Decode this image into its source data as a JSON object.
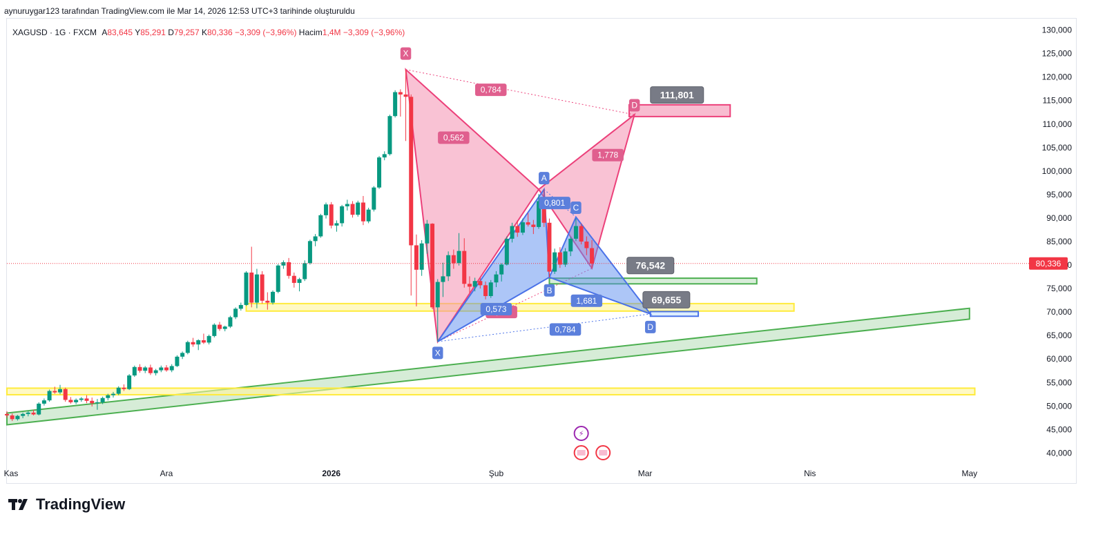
{
  "header": {
    "attribution": "aynuruygar123 tarafından TradingView.com ile Mar 14, 2026 12:53 UTC+3 tarihinde oluşturuldu"
  },
  "legend": {
    "symbol": "XAGUSD · 1G · FXCM",
    "open_label": "A",
    "open_value": "83,645",
    "high_label": "Y",
    "high_value": "85,291",
    "low_label": "D",
    "low_value": "79,257",
    "close_label": "K",
    "close_value": "80,336",
    "change": "−3,309 (−3,96%)",
    "volume_label": "Hacim",
    "volume_value": "1,4M",
    "volume_change": "−3,309 (−3,96%)"
  },
  "brand": {
    "name": "TradingView"
  },
  "colors": {
    "up": "#089981",
    "down": "#f23645",
    "pink_fill": "#f48fb1",
    "pink_line": "#ec407a",
    "blue_fill": "#5b8def",
    "blue_line": "#4a72e8",
    "yellow_zone": "#fff176",
    "green_channel": "#4caf50"
  },
  "chart_data": {
    "type": "candlestick",
    "title": "",
    "ylim": [
      38000,
      132000
    ],
    "y_ticks": [
      "130,000",
      "125,000",
      "120,000",
      "115,000",
      "110,000",
      "105,000",
      "100,000",
      "95,000",
      "90,000",
      "85,000",
      "80,000",
      "75,000",
      "70,000",
      "65,000",
      "60,000",
      "55,000",
      "50,000",
      "45,000",
      "40,000"
    ],
    "y_tick_values": [
      130000,
      125000,
      120000,
      115000,
      110000,
      105000,
      100000,
      95000,
      90000,
      85000,
      80000,
      75000,
      70000,
      65000,
      60000,
      55000,
      50000,
      45000,
      40000
    ],
    "x_ticks": [
      "Kas",
      "Ara",
      "2026",
      "Şub",
      "Mar",
      "Nis",
      "May"
    ],
    "x_tick_days": [
      -30,
      0,
      31,
      62,
      90,
      121,
      151
    ],
    "x_range_days": [
      -30,
      157
    ],
    "last_price": "80,336",
    "last_price_value": 80336,
    "candles": [
      {
        "d": -30,
        "o": 48.3,
        "h": 48.9,
        "l": 47.5,
        "c": 48.0
      },
      {
        "d": -29,
        "o": 48.0,
        "h": 48.4,
        "l": 46.8,
        "c": 47.2
      },
      {
        "d": -28,
        "o": 47.2,
        "h": 48.1,
        "l": 46.9,
        "c": 47.9
      },
      {
        "d": -27,
        "o": 47.9,
        "h": 48.6,
        "l": 47.4,
        "c": 48.3
      },
      {
        "d": -26,
        "o": 48.3,
        "h": 48.9,
        "l": 47.8,
        "c": 48.6
      },
      {
        "d": -25,
        "o": 48.6,
        "h": 49.2,
        "l": 48.0,
        "c": 48.2
      },
      {
        "d": -24,
        "o": 48.2,
        "h": 50.8,
        "l": 48.0,
        "c": 50.5
      },
      {
        "d": -23,
        "o": 50.5,
        "h": 51.6,
        "l": 50.1,
        "c": 51.2
      },
      {
        "d": -22,
        "o": 51.2,
        "h": 53.5,
        "l": 50.9,
        "c": 53.2
      },
      {
        "d": -21,
        "o": 53.2,
        "h": 54.1,
        "l": 52.6,
        "c": 52.9
      },
      {
        "d": -20,
        "o": 52.9,
        "h": 54.5,
        "l": 52.5,
        "c": 53.6
      },
      {
        "d": -19,
        "o": 53.6,
        "h": 53.9,
        "l": 50.9,
        "c": 51.3
      },
      {
        "d": -18,
        "o": 51.3,
        "h": 51.9,
        "l": 50.5,
        "c": 50.8
      },
      {
        "d": -17,
        "o": 50.8,
        "h": 51.6,
        "l": 50.4,
        "c": 51.3
      },
      {
        "d": -16,
        "o": 51.3,
        "h": 51.9,
        "l": 50.9,
        "c": 51.6
      },
      {
        "d": -15,
        "o": 51.6,
        "h": 52.3,
        "l": 50.6,
        "c": 51.1
      },
      {
        "d": -14,
        "o": 51.1,
        "h": 51.8,
        "l": 49.9,
        "c": 50.6
      },
      {
        "d": -13,
        "o": 50.6,
        "h": 51.5,
        "l": 49.2,
        "c": 50.8
      },
      {
        "d": -12,
        "o": 50.8,
        "h": 52.0,
        "l": 50.4,
        "c": 51.7
      },
      {
        "d": -11,
        "o": 51.7,
        "h": 52.6,
        "l": 51.2,
        "c": 52.3
      },
      {
        "d": -10,
        "o": 52.3,
        "h": 53.0,
        "l": 51.8,
        "c": 52.6
      },
      {
        "d": -9,
        "o": 52.6,
        "h": 54.2,
        "l": 52.3,
        "c": 53.9
      },
      {
        "d": -8,
        "o": 53.9,
        "h": 54.6,
        "l": 53.2,
        "c": 53.6
      },
      {
        "d": -7,
        "o": 53.6,
        "h": 56.8,
        "l": 53.4,
        "c": 56.5
      },
      {
        "d": -6,
        "o": 56.5,
        "h": 58.6,
        "l": 56.2,
        "c": 58.3
      },
      {
        "d": -5,
        "o": 58.3,
        "h": 58.9,
        "l": 57.1,
        "c": 57.5
      },
      {
        "d": -4,
        "o": 57.5,
        "h": 58.5,
        "l": 57.0,
        "c": 58.2
      },
      {
        "d": -3,
        "o": 58.2,
        "h": 58.8,
        "l": 56.6,
        "c": 57.0
      },
      {
        "d": -2,
        "o": 57.0,
        "h": 57.9,
        "l": 56.5,
        "c": 57.6
      },
      {
        "d": -1,
        "o": 57.6,
        "h": 58.6,
        "l": 57.2,
        "c": 58.2
      },
      {
        "d": 0,
        "o": 58.2,
        "h": 58.7,
        "l": 57.3,
        "c": 57.6
      },
      {
        "d": 1,
        "o": 57.6,
        "h": 58.9,
        "l": 57.2,
        "c": 58.5
      },
      {
        "d": 2,
        "o": 58.5,
        "h": 60.8,
        "l": 58.3,
        "c": 60.5
      },
      {
        "d": 3,
        "o": 60.5,
        "h": 61.6,
        "l": 60.0,
        "c": 61.3
      },
      {
        "d": 4,
        "o": 61.3,
        "h": 63.9,
        "l": 61.0,
        "c": 63.6
      },
      {
        "d": 5,
        "o": 63.6,
        "h": 64.5,
        "l": 62.6,
        "c": 63.1
      },
      {
        "d": 6,
        "o": 63.1,
        "h": 64.2,
        "l": 61.9,
        "c": 64.0
      },
      {
        "d": 7,
        "o": 64.0,
        "h": 65.4,
        "l": 63.2,
        "c": 63.5
      },
      {
        "d": 8,
        "o": 63.5,
        "h": 65.2,
        "l": 63.1,
        "c": 64.9
      },
      {
        "d": 9,
        "o": 64.9,
        "h": 67.6,
        "l": 64.6,
        "c": 67.3
      },
      {
        "d": 10,
        "o": 67.3,
        "h": 67.9,
        "l": 66.0,
        "c": 66.4
      },
      {
        "d": 11,
        "o": 66.4,
        "h": 67.1,
        "l": 65.9,
        "c": 66.9
      },
      {
        "d": 12,
        "o": 66.9,
        "h": 69.2,
        "l": 66.6,
        "c": 68.9
      },
      {
        "d": 13,
        "o": 68.9,
        "h": 71.0,
        "l": 68.5,
        "c": 70.7
      },
      {
        "d": 14,
        "o": 70.7,
        "h": 72.0,
        "l": 70.3,
        "c": 71.5
      },
      {
        "d": 15,
        "o": 71.5,
        "h": 78.7,
        "l": 71.3,
        "c": 78.4
      },
      {
        "d": 16,
        "o": 78.4,
        "h": 83.9,
        "l": 71.0,
        "c": 72.0
      },
      {
        "d": 17,
        "o": 72.0,
        "h": 79.2,
        "l": 70.8,
        "c": 78.0
      },
      {
        "d": 18,
        "o": 78.0,
        "h": 78.7,
        "l": 71.8,
        "c": 72.4
      },
      {
        "d": 19,
        "o": 72.4,
        "h": 74.2,
        "l": 70.5,
        "c": 72.0
      },
      {
        "d": 20,
        "o": 72.0,
        "h": 74.6,
        "l": 71.6,
        "c": 74.3
      },
      {
        "d": 21,
        "o": 74.3,
        "h": 80.2,
        "l": 74.0,
        "c": 79.9
      },
      {
        "d": 22,
        "o": 79.9,
        "h": 81.0,
        "l": 79.2,
        "c": 80.6
      },
      {
        "d": 23,
        "o": 80.6,
        "h": 81.5,
        "l": 77.1,
        "c": 77.7
      },
      {
        "d": 24,
        "o": 77.7,
        "h": 78.4,
        "l": 75.2,
        "c": 76.2
      },
      {
        "d": 25,
        "o": 76.2,
        "h": 77.3,
        "l": 74.4,
        "c": 77.0
      },
      {
        "d": 26,
        "o": 77.0,
        "h": 81.0,
        "l": 76.6,
        "c": 80.4
      },
      {
        "d": 27,
        "o": 80.4,
        "h": 85.4,
        "l": 80.1,
        "c": 85.1
      },
      {
        "d": 28,
        "o": 85.1,
        "h": 86.6,
        "l": 84.0,
        "c": 86.1
      },
      {
        "d": 29,
        "o": 86.1,
        "h": 90.9,
        "l": 85.8,
        "c": 90.6
      },
      {
        "d": 30,
        "o": 90.6,
        "h": 93.3,
        "l": 89.9,
        "c": 92.9
      },
      {
        "d": 31,
        "o": 92.9,
        "h": 93.4,
        "l": 87.8,
        "c": 88.4
      },
      {
        "d": 32,
        "o": 88.4,
        "h": 89.5,
        "l": 87.1,
        "c": 88.9
      },
      {
        "d": 33,
        "o": 88.9,
        "h": 92.8,
        "l": 88.2,
        "c": 92.5
      },
      {
        "d": 34,
        "o": 92.5,
        "h": 93.9,
        "l": 91.6,
        "c": 93.0
      },
      {
        "d": 35,
        "o": 93.0,
        "h": 93.6,
        "l": 90.1,
        "c": 90.7
      },
      {
        "d": 36,
        "o": 90.7,
        "h": 93.7,
        "l": 90.3,
        "c": 93.3
      },
      {
        "d": 37,
        "o": 93.3,
        "h": 94.7,
        "l": 88.5,
        "c": 89.3
      },
      {
        "d": 38,
        "o": 89.3,
        "h": 92.2,
        "l": 88.9,
        "c": 91.8
      },
      {
        "d": 39,
        "o": 91.8,
        "h": 96.8,
        "l": 91.4,
        "c": 96.5
      },
      {
        "d": 40,
        "o": 96.5,
        "h": 103.2,
        "l": 96.2,
        "c": 102.9
      },
      {
        "d": 41,
        "o": 102.9,
        "h": 104.2,
        "l": 102.3,
        "c": 103.6
      },
      {
        "d": 42,
        "o": 103.6,
        "h": 112.0,
        "l": 103.3,
        "c": 111.7
      },
      {
        "d": 43,
        "o": 111.7,
        "h": 117.2,
        "l": 111.4,
        "c": 116.8
      },
      {
        "d": 44,
        "o": 116.8,
        "h": 117.4,
        "l": 111.6,
        "c": 116.3
      },
      {
        "d": 45,
        "o": 116.3,
        "h": 121.6,
        "l": 106.4,
        "c": 115.8
      },
      {
        "d": 46,
        "o": 115.8,
        "h": 116.3,
        "l": 73.5,
        "c": 84.2
      },
      {
        "d": 47,
        "o": 84.2,
        "h": 86.5,
        "l": 71.2,
        "c": 79.0
      },
      {
        "d": 48,
        "o": 79.0,
        "h": 85.3,
        "l": 77.7,
        "c": 84.6
      },
      {
        "d": 49,
        "o": 84.6,
        "h": 89.6,
        "l": 82.4,
        "c": 88.8
      },
      {
        "d": 50,
        "o": 88.8,
        "h": 88.9,
        "l": 70.6,
        "c": 71.0
      },
      {
        "d": 51,
        "o": 71.0,
        "h": 77.0,
        "l": 63.7,
        "c": 76.4
      },
      {
        "d": 52,
        "o": 76.4,
        "h": 80.5,
        "l": 73.2,
        "c": 77.6
      },
      {
        "d": 53,
        "o": 77.6,
        "h": 82.9,
        "l": 76.6,
        "c": 82.1
      },
      {
        "d": 54,
        "o": 82.1,
        "h": 83.3,
        "l": 79.2,
        "c": 80.4
      },
      {
        "d": 55,
        "o": 80.4,
        "h": 86.8,
        "l": 79.9,
        "c": 83.0
      },
      {
        "d": 56,
        "o": 83.0,
        "h": 85.7,
        "l": 75.2,
        "c": 76.0
      },
      {
        "d": 57,
        "o": 76.0,
        "h": 77.6,
        "l": 74.1,
        "c": 75.4
      },
      {
        "d": 58,
        "o": 75.4,
        "h": 77.3,
        "l": 74.4,
        "c": 76.6
      },
      {
        "d": 59,
        "o": 76.6,
        "h": 77.3,
        "l": 75.0,
        "c": 75.7
      },
      {
        "d": 60,
        "o": 75.7,
        "h": 76.5,
        "l": 72.7,
        "c": 73.4
      },
      {
        "d": 61,
        "o": 73.4,
        "h": 76.8,
        "l": 73.0,
        "c": 76.3
      },
      {
        "d": 62,
        "o": 76.3,
        "h": 78.7,
        "l": 75.3,
        "c": 78.0
      },
      {
        "d": 63,
        "o": 78.0,
        "h": 80.4,
        "l": 76.5,
        "c": 80.1
      },
      {
        "d": 64,
        "o": 80.1,
        "h": 86.1,
        "l": 79.9,
        "c": 85.6
      },
      {
        "d": 65,
        "o": 85.6,
        "h": 89.0,
        "l": 84.8,
        "c": 88.3
      },
      {
        "d": 66,
        "o": 88.3,
        "h": 89.5,
        "l": 86.0,
        "c": 86.9
      },
      {
        "d": 67,
        "o": 86.9,
        "h": 89.9,
        "l": 86.4,
        "c": 89.1
      },
      {
        "d": 68,
        "o": 89.1,
        "h": 91.1,
        "l": 88.2,
        "c": 88.6
      },
      {
        "d": 69,
        "o": 88.6,
        "h": 89.6,
        "l": 86.6,
        "c": 88.1
      },
      {
        "d": 70,
        "o": 88.1,
        "h": 95.1,
        "l": 87.7,
        "c": 93.6
      },
      {
        "d": 71,
        "o": 93.6,
        "h": 96.1,
        "l": 88.1,
        "c": 89.0
      },
      {
        "d": 72,
        "o": 89.0,
        "h": 89.9,
        "l": 77.4,
        "c": 78.6
      },
      {
        "d": 73,
        "o": 78.6,
        "h": 83.5,
        "l": 78.1,
        "c": 82.7
      },
      {
        "d": 74,
        "o": 82.7,
        "h": 83.8,
        "l": 79.4,
        "c": 80.1
      },
      {
        "d": 75,
        "o": 80.1,
        "h": 83.6,
        "l": 79.6,
        "c": 82.9
      },
      {
        "d": 76,
        "o": 82.9,
        "h": 86.0,
        "l": 81.9,
        "c": 85.6
      },
      {
        "d": 77,
        "o": 85.6,
        "h": 89.9,
        "l": 85.1,
        "c": 88.3
      },
      {
        "d": 78,
        "o": 88.3,
        "h": 88.8,
        "l": 84.4,
        "c": 85.0
      },
      {
        "d": 79,
        "o": 85.0,
        "h": 86.1,
        "l": 82.1,
        "c": 83.6
      },
      {
        "d": 80,
        "o": 83.6,
        "h": 85.3,
        "l": 79.3,
        "c": 80.3
      }
    ],
    "patterns": [
      {
        "name": "pink",
        "points": {
          "X": {
            "d": 45,
            "v": 121.6
          },
          "A": {
            "d": 51,
            "v": 63.7
          },
          "B": {
            "d": 70,
            "v": 96.1
          },
          "C": {
            "d": 80,
            "v": 79.3
          },
          "D": {
            "d": 88,
            "v": 112.0
          }
        },
        "labels": [
          {
            "text": "X",
            "d": 45,
            "v": 125.0
          },
          {
            "text": "D",
            "d": 88,
            "v": 114.0
          }
        ],
        "ratios": [
          {
            "text": "0,784",
            "d": 61,
            "v": 117.3
          },
          {
            "text": "0,562",
            "d": 54,
            "v": 107.1
          },
          {
            "text": "1,778",
            "d": 83,
            "v": 103.4
          },
          {
            "text": "0,784",
            "d": 63,
            "v": 70.0
          }
        ],
        "target": {
          "text": "111,801",
          "value": 111801,
          "d": 96,
          "v": 116.2
        }
      },
      {
        "name": "blue",
        "points": {
          "X": {
            "d": 51,
            "v": 63.7
          },
          "A": {
            "d": 71,
            "v": 96.1
          },
          "B": {
            "d": 72,
            "v": 77.4
          },
          "C": {
            "d": 77,
            "v": 90.2
          },
          "D": {
            "d": 91,
            "v": 69.6
          }
        },
        "labels": [
          {
            "text": "X",
            "d": 51,
            "v": 61.3
          },
          {
            "text": "A",
            "d": 71,
            "v": 98.5
          },
          {
            "text": "B",
            "d": 72,
            "v": 74.6
          },
          {
            "text": "C",
            "d": 77,
            "v": 92.2
          },
          {
            "text": "D",
            "d": 91,
            "v": 66.8
          }
        ],
        "ratios": [
          {
            "text": "0,573",
            "d": 62,
            "v": 70.6
          },
          {
            "text": "0,801",
            "d": 73,
            "v": 93.2
          },
          {
            "text": "1,681",
            "d": 79,
            "v": 72.4
          },
          {
            "text": "0,784",
            "d": 75,
            "v": 66.3
          }
        ],
        "target": {
          "text": "69,655",
          "value": 69655,
          "d": 94,
          "v": 72.6
        }
      },
      {
        "name": "second-target",
        "target": {
          "text": "76,542",
          "value": 76542,
          "d": 91,
          "v": 79.9
        }
      }
    ],
    "zones": [
      {
        "kind": "yellow",
        "d0": -30,
        "d1": 152,
        "v0": 52.4,
        "v1": 53.8
      },
      {
        "kind": "yellow",
        "d0": 15,
        "d1": 118,
        "v0": 70.2,
        "v1": 71.8
      },
      {
        "kind": "pink",
        "d0": 87,
        "d1": 106,
        "v0": 111.6,
        "v1": 114.1
      },
      {
        "kind": "green",
        "d0": 72,
        "d1": 111,
        "v0": 76.0,
        "v1": 77.2
      },
      {
        "kind": "blue",
        "d0": 91,
        "d1": 100,
        "v0": 69.1,
        "v1": 70.1
      }
    ],
    "channel": {
      "d0": -30,
      "d1": 151,
      "lower0": 46.0,
      "lower1": 68.5,
      "upper0": 48.5,
      "upper1": 70.8
    }
  }
}
